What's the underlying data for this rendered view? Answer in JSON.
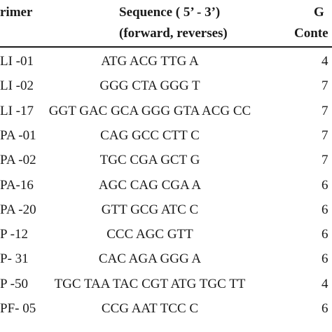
{
  "header": {
    "primer": "rimer",
    "sequence_line1": "Sequence ( 5’ - 3’)",
    "sequence_line2": "(forward, reverses)",
    "gc_line1": "G",
    "gc_line2": "Conte"
  },
  "rows": [
    {
      "primer": "LI -01",
      "sequence": "ATG ACG TTG A",
      "gc": "4"
    },
    {
      "primer": "LI -02",
      "sequence": "GGG CTA GGG T",
      "gc": "7"
    },
    {
      "primer": "LI -17",
      "sequence": "GGT GAC GCA GGG GTA ACG CC",
      "gc": "7"
    },
    {
      "primer": "PA -01",
      "sequence": "CAG GCC CTT C",
      "gc": "7"
    },
    {
      "primer": "PA -02",
      "sequence": "TGC CGA GCT G",
      "gc": "7"
    },
    {
      "primer": "PA-16",
      "sequence": "AGC CAG CGA A",
      "gc": "6"
    },
    {
      "primer": "PA -20",
      "sequence": "GTT GCG ATC  C",
      "gc": "6"
    },
    {
      "primer": "P -12",
      "sequence": "CCC AGC GTT",
      "gc": "6"
    },
    {
      "primer": "P- 31",
      "sequence": "CAC AGA GGG A",
      "gc": "6"
    },
    {
      "primer": "P -50",
      "sequence": "TGC TAA TAC CGT ATG TGC TT",
      "gc": "4"
    },
    {
      "primer": "PF- 05",
      "sequence": "CCG AAT TCC C",
      "gc": "6"
    }
  ]
}
